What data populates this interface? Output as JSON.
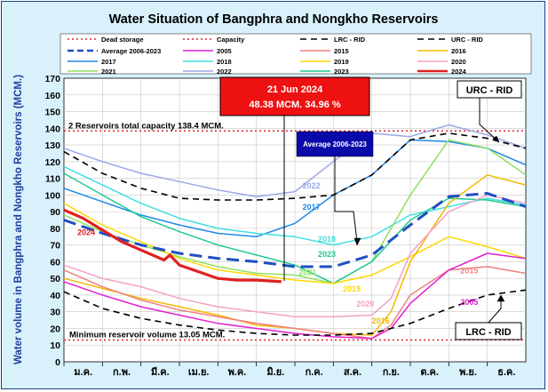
{
  "chart_data": {
    "type": "line",
    "title": "Water Situation of Bangphra and Nongkho Reservoirs",
    "ylabel": "Water volume in Bangphra and Nongkho Reservoirs (MCM.)",
    "xlabel": "",
    "ylim": [
      0,
      170
    ],
    "ytick_step": 10,
    "categories": [
      "ม.ค.",
      "ก.พ.",
      "มี.ค.",
      "เม.ย.",
      "พ.ค.",
      "มิ.ย.",
      "ก.ค.",
      "ส.ค.",
      "ก.ย.",
      "ต.ค.",
      "พ.ย.",
      "ธ.ค."
    ],
    "x_unit": "month index (0 = 1 Jan, 12 = 31 Dec)",
    "dead_storage": 13.05,
    "capacity": 138.4,
    "legend": [
      {
        "key": "dead",
        "label": "Dead storage"
      },
      {
        "key": "cap",
        "label": "Capacity"
      },
      {
        "key": "lrc",
        "label": "LRC - RID"
      },
      {
        "key": "urc",
        "label": "URC - RID"
      },
      {
        "key": "avg",
        "label": "Average 2006-2023"
      },
      {
        "key": "y2005",
        "label": "2005"
      },
      {
        "key": "y2015",
        "label": "2015"
      },
      {
        "key": "y2016",
        "label": "2016"
      },
      {
        "key": "y2017",
        "label": "2017"
      },
      {
        "key": "y2018",
        "label": "2018"
      },
      {
        "key": "y2019",
        "label": "2019"
      },
      {
        "key": "y2020",
        "label": "2020"
      },
      {
        "key": "y2021",
        "label": "2021"
      },
      {
        "key": "y2022",
        "label": "2022"
      },
      {
        "key": "y2023",
        "label": "2023"
      },
      {
        "key": "y2024",
        "label": "2024"
      }
    ],
    "colors": {
      "dead": "#e0202a",
      "cap": "#e0202a",
      "lrc": "#000000",
      "urc": "#000000",
      "avg": "#1f4fc0",
      "y2005": "#e020d0",
      "y2015": "#f08080",
      "y2016": "#f5b800",
      "y2017": "#1e88e5",
      "y2018": "#3fe0e0",
      "y2019": "#ffd800",
      "y2020": "#f5a0c8",
      "y2021": "#90e060",
      "y2022": "#9aa8e8",
      "y2023": "#20c890",
      "y2024": "#e02020"
    },
    "series": [
      {
        "key": "urc",
        "name": "URC - RID",
        "points": [
          [
            0,
            126
          ],
          [
            1,
            113
          ],
          [
            2,
            104
          ],
          [
            3,
            98
          ],
          [
            4,
            97
          ],
          [
            5,
            97
          ],
          [
            6,
            98
          ],
          [
            7,
            100
          ],
          [
            8,
            112
          ],
          [
            9,
            133
          ],
          [
            10,
            137
          ],
          [
            11,
            134
          ],
          [
            12,
            128
          ]
        ]
      },
      {
        "key": "lrc",
        "name": "LRC - RID",
        "points": [
          [
            0,
            42
          ],
          [
            1,
            32
          ],
          [
            2,
            26
          ],
          [
            3,
            22
          ],
          [
            4,
            19
          ],
          [
            5,
            17
          ],
          [
            6,
            16
          ],
          [
            7,
            16
          ],
          [
            8,
            17
          ],
          [
            9,
            23
          ],
          [
            10,
            32
          ],
          [
            11,
            40
          ],
          [
            12,
            43
          ]
        ]
      },
      {
        "key": "avg",
        "name": "Average 2006-2023",
        "points": [
          [
            0,
            85
          ],
          [
            1,
            77
          ],
          [
            2,
            70
          ],
          [
            3,
            65
          ],
          [
            4,
            62
          ],
          [
            5,
            60
          ],
          [
            6,
            57
          ],
          [
            7,
            57
          ],
          [
            8,
            64
          ],
          [
            9,
            82
          ],
          [
            10,
            99
          ],
          [
            11,
            101
          ],
          [
            12,
            93
          ]
        ]
      },
      {
        "key": "y2005",
        "name": "2005",
        "points": [
          [
            0,
            48
          ],
          [
            1,
            40
          ],
          [
            2,
            33
          ],
          [
            3,
            28
          ],
          [
            4,
            23
          ],
          [
            5,
            20
          ],
          [
            6,
            17
          ],
          [
            7,
            15
          ],
          [
            8,
            14
          ],
          [
            8.5,
            20
          ],
          [
            9,
            35
          ],
          [
            10,
            55
          ],
          [
            11,
            65
          ],
          [
            12,
            62
          ]
        ]
      },
      {
        "key": "y2015",
        "name": "2015",
        "points": [
          [
            0,
            55
          ],
          [
            1,
            45
          ],
          [
            2,
            37
          ],
          [
            3,
            31
          ],
          [
            4,
            27
          ],
          [
            5,
            23
          ],
          [
            6,
            20
          ],
          [
            7,
            17
          ],
          [
            8,
            14
          ],
          [
            8.5,
            22
          ],
          [
            9,
            40
          ],
          [
            10,
            55
          ],
          [
            11,
            57
          ],
          [
            12,
            53
          ]
        ]
      },
      {
        "key": "y2016",
        "name": "2016",
        "points": [
          [
            0,
            50
          ],
          [
            1,
            44
          ],
          [
            2,
            38
          ],
          [
            3,
            33
          ],
          [
            4,
            28
          ],
          [
            5,
            22
          ],
          [
            6,
            20
          ],
          [
            7,
            17
          ],
          [
            8,
            16
          ],
          [
            8.5,
            30
          ],
          [
            9,
            60
          ],
          [
            10,
            95
          ],
          [
            11,
            112
          ],
          [
            12,
            106
          ]
        ]
      },
      {
        "key": "y2017",
        "name": "2017",
        "points": [
          [
            0,
            104
          ],
          [
            1,
            96
          ],
          [
            2,
            88
          ],
          [
            3,
            82
          ],
          [
            4,
            77
          ],
          [
            5,
            75
          ],
          [
            6,
            83
          ],
          [
            7,
            100
          ],
          [
            8,
            112
          ],
          [
            9,
            133
          ],
          [
            10,
            132
          ],
          [
            11,
            128
          ],
          [
            12,
            118
          ]
        ]
      },
      {
        "key": "y2018",
        "name": "2018",
        "points": [
          [
            0,
            117
          ],
          [
            1,
            106
          ],
          [
            2,
            95
          ],
          [
            3,
            86
          ],
          [
            4,
            80
          ],
          [
            5,
            77
          ],
          [
            6,
            75
          ],
          [
            7,
            70
          ],
          [
            8,
            75
          ],
          [
            9,
            88
          ],
          [
            10,
            93
          ],
          [
            11,
            98
          ],
          [
            12,
            94
          ]
        ]
      },
      {
        "key": "y2019",
        "name": "2019",
        "points": [
          [
            0,
            95
          ],
          [
            1,
            82
          ],
          [
            2,
            72
          ],
          [
            3,
            62
          ],
          [
            4,
            55
          ],
          [
            5,
            52
          ],
          [
            6,
            49
          ],
          [
            7,
            47
          ],
          [
            8,
            52
          ],
          [
            9,
            63
          ],
          [
            10,
            75
          ],
          [
            11,
            69
          ],
          [
            12,
            62
          ]
        ]
      },
      {
        "key": "y2020",
        "name": "2020",
        "points": [
          [
            0,
            58
          ],
          [
            1,
            50
          ],
          [
            2,
            45
          ],
          [
            3,
            38
          ],
          [
            4,
            33
          ],
          [
            5,
            30
          ],
          [
            6,
            27
          ],
          [
            7,
            27
          ],
          [
            8,
            28
          ],
          [
            8.5,
            38
          ],
          [
            9,
            65
          ],
          [
            10,
            90
          ],
          [
            11,
            100
          ],
          [
            12,
            95
          ]
        ]
      },
      {
        "key": "y2021",
        "name": "2021",
        "points": [
          [
            0,
            88
          ],
          [
            1,
            78
          ],
          [
            2,
            70
          ],
          [
            3,
            63
          ],
          [
            4,
            57
          ],
          [
            5,
            53
          ],
          [
            6,
            52
          ],
          [
            7,
            47
          ],
          [
            8,
            60
          ],
          [
            9,
            100
          ],
          [
            10,
            133
          ],
          [
            11,
            128
          ],
          [
            12,
            112
          ]
        ]
      },
      {
        "key": "y2022",
        "name": "2022",
        "points": [
          [
            0,
            128
          ],
          [
            1,
            120
          ],
          [
            2,
            113
          ],
          [
            3,
            108
          ],
          [
            4,
            103
          ],
          [
            5,
            99
          ],
          [
            6,
            102
          ],
          [
            7,
            120
          ],
          [
            8,
            137
          ],
          [
            9,
            135
          ],
          [
            10,
            142
          ],
          [
            11,
            136
          ],
          [
            12,
            128
          ]
        ]
      },
      {
        "key": "y2023",
        "name": "2023",
        "points": [
          [
            0,
            113
          ],
          [
            1,
            100
          ],
          [
            2,
            87
          ],
          [
            3,
            78
          ],
          [
            4,
            70
          ],
          [
            5,
            64
          ],
          [
            6,
            58
          ],
          [
            7,
            47
          ],
          [
            8,
            60
          ],
          [
            9,
            85
          ],
          [
            10,
            98
          ],
          [
            11,
            97
          ],
          [
            12,
            93
          ]
        ]
      },
      {
        "key": "y2024",
        "name": "2024",
        "points": [
          [
            0,
            91
          ],
          [
            0.5,
            86
          ],
          [
            1,
            79
          ],
          [
            1.5,
            72
          ],
          [
            2,
            67
          ],
          [
            2.6,
            61
          ],
          [
            2.75,
            64
          ],
          [
            3,
            58
          ],
          [
            3.5,
            54
          ],
          [
            4,
            50
          ],
          [
            4.5,
            49
          ],
          [
            5,
            49
          ],
          [
            5.65,
            48
          ]
        ]
      }
    ],
    "series_labels": [
      {
        "key": "y2024",
        "text": "2024",
        "x": 0.35,
        "y": 76
      },
      {
        "key": "y2022",
        "text": "2022",
        "x": 6.2,
        "y": 104
      },
      {
        "key": "y2017",
        "text": "2017",
        "x": 6.2,
        "y": 91
      },
      {
        "key": "y2018",
        "text": "2018",
        "x": 6.6,
        "y": 72
      },
      {
        "key": "y2023",
        "text": "2023",
        "x": 6.6,
        "y": 63
      },
      {
        "key": "y2021",
        "text": "2021",
        "x": 6.1,
        "y": 52
      },
      {
        "key": "y2019",
        "text": "2019",
        "x": 7.25,
        "y": 42
      },
      {
        "key": "y2020",
        "text": "2020",
        "x": 7.6,
        "y": 33
      },
      {
        "key": "y2016",
        "text": "2016",
        "x": 8.0,
        "y": 23
      },
      {
        "key": "y2015",
        "text": "2015",
        "x": 10.3,
        "y": 53
      },
      {
        "key": "y2005",
        "text": "2005",
        "x": 10.3,
        "y": 34
      }
    ],
    "annotations": {
      "capacity_text": "2 Reservoirs total capacity 138.4 MCM.",
      "min_text": "Minimum reservoir volume 13.05 MCM.",
      "urc_box": "URC - RID",
      "lrc_box": "LRC - RID",
      "avg_box": "Average 2006-2023",
      "callout_date": "21 Jun 2024",
      "callout_value": "48.38 MCM. 34.96 %"
    }
  }
}
